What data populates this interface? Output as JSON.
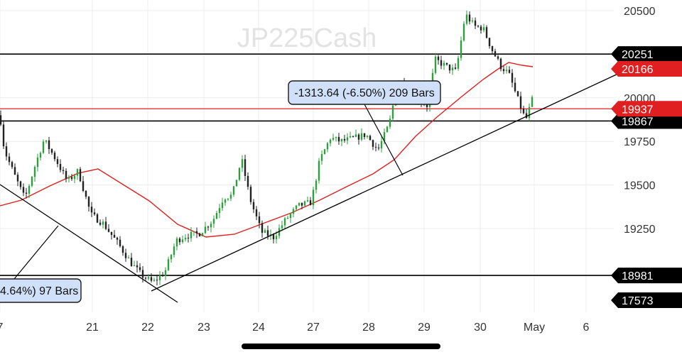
{
  "chart_data": {
    "type": "candlestick",
    "symbol_watermark": "JP225Cash",
    "y_ticks": [
      20500,
      20000,
      19750,
      19500,
      19250
    ],
    "y_tick_labels": [
      "20500",
      "20000",
      "19750",
      "19500",
      "19250"
    ],
    "x_tick_labels": [
      "7",
      "21",
      "22",
      "23",
      "24",
      "27",
      "28",
      "29",
      "30",
      "May",
      "6"
    ],
    "colors": {
      "bull": "#2e9e3e",
      "bear": "#222222",
      "moving_average": "#e02020",
      "current_price": "#e02020",
      "trendline": "#000000",
      "annotation_fill": "#cfe0f8",
      "annotation_border": "#1a1a1a"
    },
    "horizontal_levels": [
      {
        "value": 20251,
        "label": "20251",
        "style": "black"
      },
      {
        "value": 19867,
        "label": "19867",
        "style": "black"
      },
      {
        "value": 18981,
        "label": "18981",
        "style": "black"
      }
    ],
    "price_tags": [
      {
        "value": 20166,
        "label": "20166",
        "style": "red"
      },
      {
        "value": 19937,
        "label": "19937",
        "style": "red"
      },
      {
        "value": 17573,
        "label": "17573",
        "style": "black"
      }
    ],
    "current_price": 19937,
    "annotations": [
      {
        "text": "-1313.64 (-6.50%) 209 Bars"
      },
      {
        "text": "4.64%) 97 Bars"
      }
    ]
  }
}
